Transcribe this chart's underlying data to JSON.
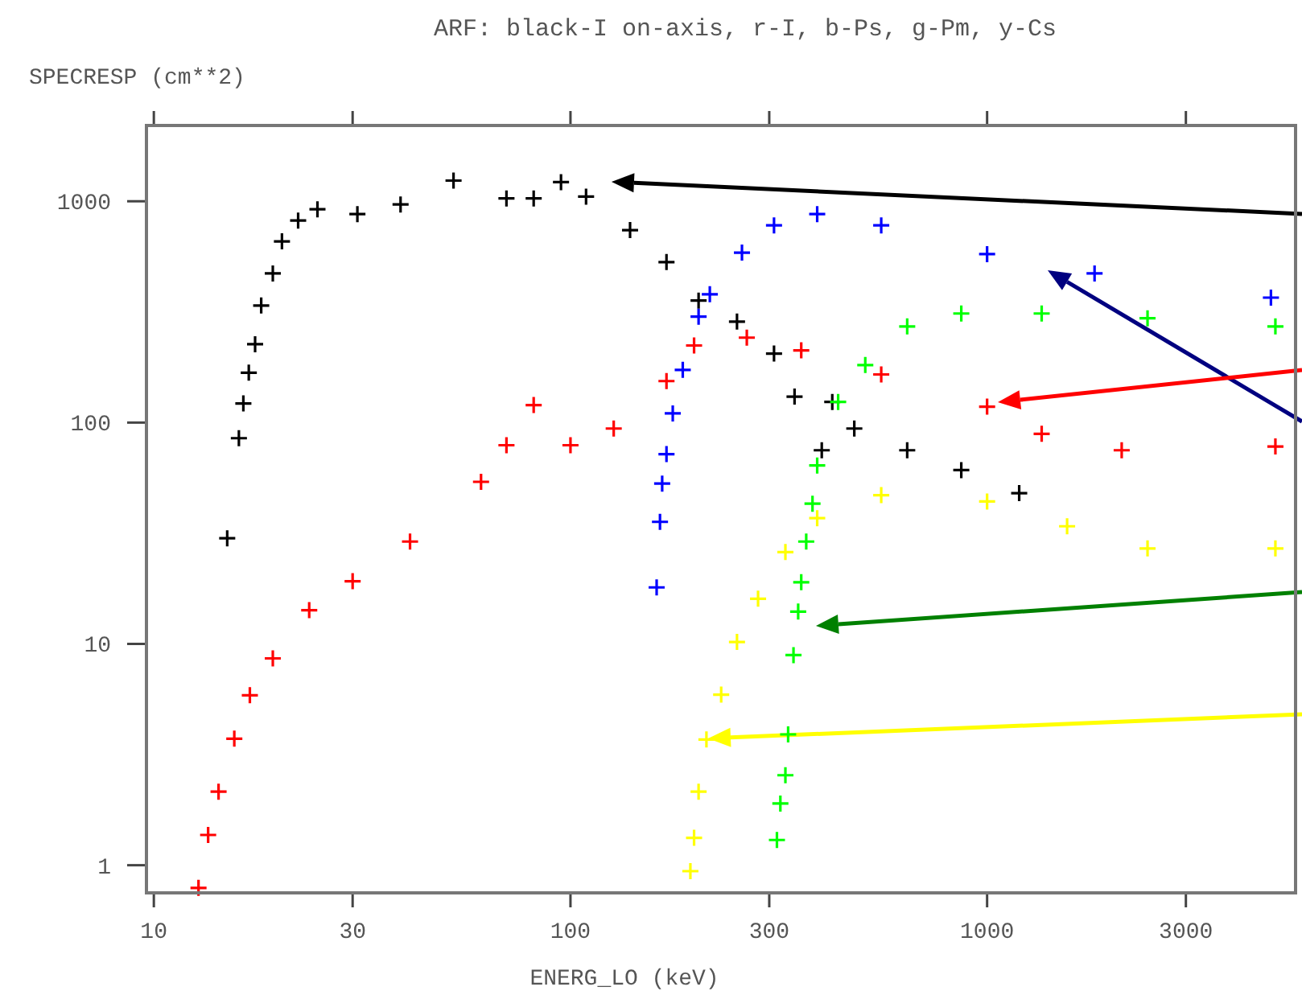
{
  "chart_data": {
    "type": "scatter",
    "title": "ARF: black-I on-axis, r-I, b-Ps, g-Pm, y-Cs",
    "xlabel": "ENERG_LO (keV)",
    "ylabel": "SPECRESP (cm**2)",
    "log": "xy",
    "marker": "cross",
    "grid": false,
    "xlim": [
      9.6,
      5500
    ],
    "ylim": [
      0.75,
      2200
    ],
    "xticks": [
      10,
      30,
      100,
      300,
      1000,
      3000
    ],
    "yticks": [
      1,
      10,
      100,
      1000
    ],
    "series": [
      {
        "color": "#000000",
        "x": [
          15,
          16,
          16.4,
          16.9,
          17.5,
          18.1,
          19.3,
          20.3,
          22.2,
          24.7,
          30.8,
          39.1,
          52.4,
          70.2,
          81.6,
          94.9,
          109,
          139,
          170,
          203,
          251,
          308,
          345,
          401,
          425,
          480,
          643,
          867,
          1194
        ],
        "values": [
          30,
          85,
          122,
          168,
          226,
          338,
          472,
          659,
          818,
          920,
          875,
          967,
          1240,
          1030,
          1030,
          1220,
          1050,
          741,
          531,
          356,
          286,
          205,
          131,
          75,
          124,
          94,
          75,
          61,
          48
        ]
      },
      {
        "color": "#ff0000",
        "x": [
          12.8,
          13.5,
          14.3,
          15.6,
          17,
          19.3,
          23.6,
          30,
          41.2,
          61,
          70.2,
          81.6,
          100,
          127,
          170,
          198,
          265,
          358,
          557,
          1000,
          1352,
          2104,
          4920
        ],
        "values": [
          0.79,
          1.37,
          2.15,
          3.73,
          5.86,
          8.6,
          14.2,
          19.2,
          29,
          54,
          79,
          120,
          79,
          94,
          154,
          223,
          242,
          212,
          165,
          118,
          89,
          75,
          78
        ]
      },
      {
        "color": "#0000ff",
        "x": [
          161,
          164,
          166,
          170,
          176,
          186,
          203,
          216,
          258,
          308,
          391,
          557,
          1000,
          1811,
          4800
        ],
        "values": [
          18,
          35.6,
          53,
          72,
          110,
          173,
          301,
          380,
          586,
          778,
          875,
          778,
          577,
          472,
          367
        ]
      },
      {
        "color": "#00ff00",
        "x": [
          313,
          319,
          328,
          333,
          343,
          352,
          358,
          368,
          381,
          391,
          439,
          510,
          643,
          867,
          1352,
          2427,
          4920
        ],
        "values": [
          1.3,
          1.9,
          2.55,
          3.9,
          8.9,
          14,
          19,
          29,
          43,
          64,
          124,
          182,
          272,
          311,
          311,
          296,
          272
        ]
      },
      {
        "color": "#ffff00",
        "x": [
          194,
          198,
          203,
          212,
          230,
          251,
          282,
          328,
          391,
          557,
          1000,
          1556,
          2427,
          4920
        ],
        "values": [
          0.94,
          1.33,
          2.15,
          3.7,
          5.9,
          10.2,
          16,
          26,
          37,
          47,
          44,
          34,
          27,
          27
        ]
      }
    ]
  }
}
